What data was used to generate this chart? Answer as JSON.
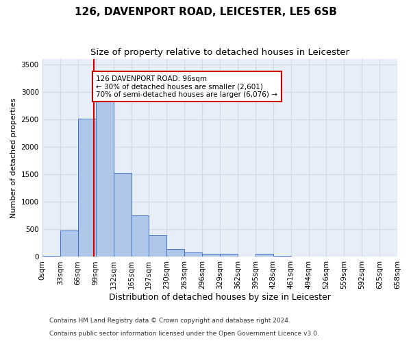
{
  "title_line1": "126, DAVENPORT ROAD, LEICESTER, LE5 6SB",
  "title_line2": "Size of property relative to detached houses in Leicester",
  "xlabel": "Distribution of detached houses by size in Leicester",
  "ylabel": "Number of detached properties",
  "footnote_line1": "Contains HM Land Registry data © Crown copyright and database right 2024.",
  "footnote_line2": "Contains public sector information licensed under the Open Government Licence v3.0.",
  "bar_edges": [
    0,
    33,
    66,
    99,
    132,
    165,
    197,
    230,
    263,
    296,
    329,
    362,
    395,
    428,
    461,
    494,
    526,
    559,
    592,
    625,
    658
  ],
  "bar_heights": [
    20,
    480,
    2510,
    2820,
    1520,
    750,
    390,
    140,
    80,
    55,
    55,
    0,
    50,
    20,
    0,
    0,
    0,
    0,
    0,
    0
  ],
  "bar_color": "#aec6e8",
  "bar_edgecolor": "#4472c4",
  "vline_x": 96,
  "vline_color": "#cc0000",
  "annotation_text": "126 DAVENPORT ROAD: 96sqm\n← 30% of detached houses are smaller (2,601)\n70% of semi-detached houses are larger (6,076) →",
  "annotation_box_color": "#cc0000",
  "annotation_bg": "#ffffff",
  "ylim": [
    0,
    3600
  ],
  "yticks": [
    0,
    500,
    1000,
    1500,
    2000,
    2500,
    3000,
    3500
  ],
  "grid_color": "#d0d8e8",
  "bg_color": "#e8eef8",
  "title_fontsize": 11,
  "subtitle_fontsize": 9.5,
  "ylabel_fontsize": 8,
  "xlabel_fontsize": 9,
  "tick_fontsize": 7.5,
  "annotation_fontsize": 7.5,
  "footnote_fontsize": 6.5
}
